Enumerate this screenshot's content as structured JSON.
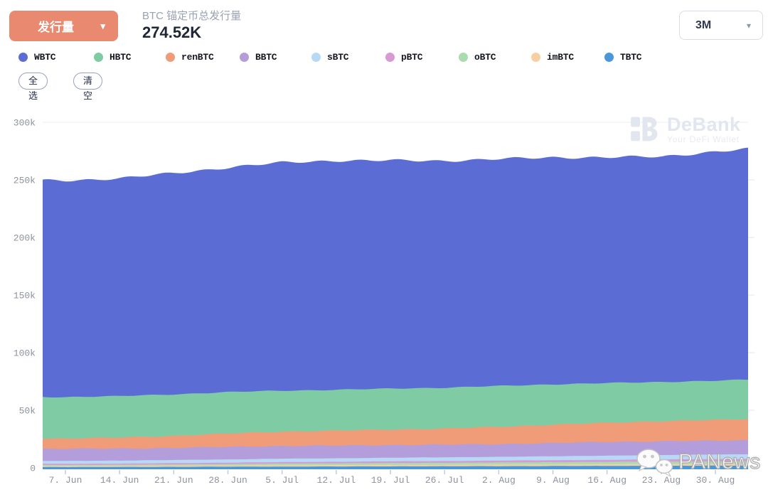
{
  "header": {
    "metric_button": {
      "label": "发行量"
    },
    "chart_title": "BTC 锚定币总发行量",
    "chart_value": "274.52K",
    "range_select": {
      "value": "3M"
    }
  },
  "legend_actions": {
    "select_all": "全选",
    "clear": "清空"
  },
  "watermarks": {
    "debank": {
      "name": "DeBank",
      "tagline": "Your DeFi Wallet"
    },
    "panews": {
      "name": "PANews"
    }
  },
  "colors": {
    "accent_button": "#e98a70",
    "text_dark": "#1f2635",
    "text_gray": "#9aa2b3",
    "axis_text": "#8d929c",
    "gridline": "#ededf2",
    "tick": "#bfcbe2"
  },
  "chart_data": {
    "type": "area",
    "stacked": true,
    "title": "BTC 锚定币总发行量",
    "current_total": "274.52K",
    "time_range": "3M",
    "unit": "thousand BTC",
    "categories": [
      "7. Jun",
      "14. Jun",
      "21. Jun",
      "28. Jun",
      "5. Jul",
      "12. Jul",
      "19. Jul",
      "26. Jul",
      "2. Aug",
      "9. Aug",
      "16. Aug",
      "23. Aug",
      "30. Aug"
    ],
    "series": [
      {
        "name": "WBTC",
        "color": "#5b6dd4",
        "values": [
          188,
          189,
          192,
          195,
          198,
          199,
          198,
          197,
          197,
          197,
          196,
          195.5,
          199
        ]
      },
      {
        "name": "HBTC",
        "color": "#7ecba4",
        "values": [
          36,
          36,
          36,
          36,
          35.5,
          35.5,
          35.5,
          35.5,
          35.5,
          35,
          34.5,
          34,
          34
        ]
      },
      {
        "name": "renBTC",
        "color": "#f09c78",
        "values": [
          9,
          9.5,
          10.5,
          11.5,
          12.5,
          13,
          13.5,
          14,
          15,
          16,
          16.5,
          17.5,
          18
        ]
      },
      {
        "name": "BBTC",
        "color": "#b49ddb",
        "values": [
          10.5,
          10.5,
          10.5,
          11,
          11,
          11,
          11,
          11,
          11,
          11.5,
          12,
          12,
          12
        ]
      },
      {
        "name": "sBTC",
        "color": "#b8d9f6",
        "values": [
          2.5,
          2.6,
          2.7,
          2.8,
          3,
          3,
          3.1,
          3.2,
          3.3,
          3.4,
          3.6,
          3.8,
          4
        ]
      },
      {
        "name": "pBTC",
        "color": "#d79ad5",
        "values": [
          1,
          1,
          1.1,
          1.2,
          1.3,
          1.4,
          1.5,
          1.5,
          1.6,
          1.7,
          1.8,
          1.9,
          2
        ]
      },
      {
        "name": "oBTC",
        "color": "#a9dcae",
        "values": [
          0.8,
          0.9,
          1,
          1.2,
          1.4,
          1.5,
          1.6,
          1.7,
          1.8,
          1.9,
          2,
          2.1,
          2.2
        ]
      },
      {
        "name": "imBTC",
        "color": "#f6d0a3",
        "values": [
          1,
          1,
          1.1,
          1.1,
          1.2,
          1.2,
          1.3,
          1.3,
          1.4,
          1.4,
          1.5,
          1.5,
          1.5
        ]
      },
      {
        "name": "TBTC",
        "color": "#4a98d9",
        "values": [
          0.7,
          0.8,
          0.9,
          1,
          1.1,
          1.2,
          1.3,
          1.4,
          1.5,
          1.6,
          1.7,
          1.8,
          1.9
        ]
      }
    ],
    "y_ticks": [
      {
        "label": "300k",
        "value": 300
      },
      {
        "label": "250k",
        "value": 250
      },
      {
        "label": "200k",
        "value": 200
      },
      {
        "label": "150k",
        "value": 150
      },
      {
        "label": "100k",
        "value": 100
      },
      {
        "label": "50k",
        "value": 50
      },
      {
        "label": "0",
        "value": 0
      }
    ],
    "ylim": [
      0,
      300
    ],
    "grid": "horizontal",
    "legend_position": "top"
  }
}
